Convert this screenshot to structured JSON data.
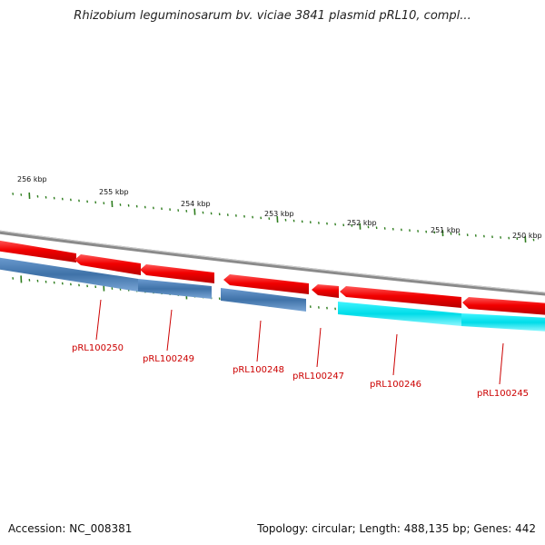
{
  "title": "Rhizobium leguminosarum bv. viciae 3841 plasmid pRL10, compl...",
  "footer": {
    "accession": "Accession: NC_008381",
    "stats": "Topology: circular; Length: 488,135 bp; Genes: 442"
  },
  "scale_labels": [
    "256 kbp",
    "255 kbp",
    "254 kbp",
    "253 kbp",
    "252 kbp",
    "251 kbp",
    "250 kbp"
  ],
  "genes": [
    {
      "label": "pRL100250"
    },
    {
      "label": "pRL100249"
    },
    {
      "label": "pRL100248"
    },
    {
      "label": "pRL100247"
    },
    {
      "label": "pRL100246"
    },
    {
      "label": "pRL100245"
    }
  ],
  "colors": {
    "backbone": "#8a8a8a",
    "reverse_strand": "#e8000b",
    "forward_strand": "#4a7fb5",
    "forward_alt": "#00e5ee",
    "ticks": "#2e7d1e",
    "label": "#cc0000"
  }
}
